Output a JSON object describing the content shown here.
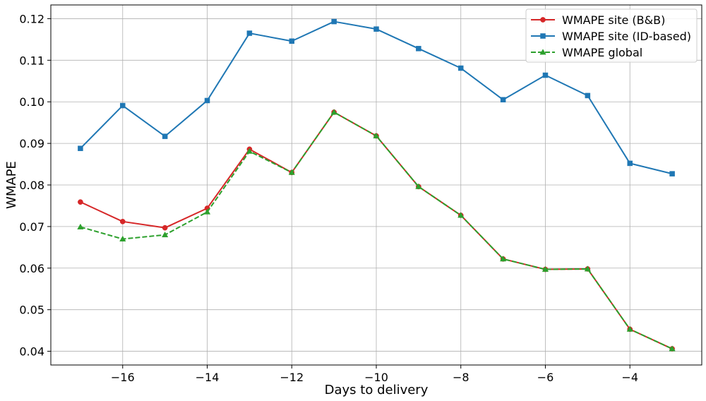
{
  "chart_data": {
    "type": "line",
    "xlabel": "Days to delivery",
    "ylabel": "WMAPE",
    "xlim": [
      -17.7,
      -2.3
    ],
    "ylim": [
      0.0367,
      0.1233
    ],
    "xticks": [
      -16,
      -14,
      -12,
      -10,
      -8,
      -6,
      -4
    ],
    "xtick_labels": [
      "−16",
      "−14",
      "−12",
      "−10",
      "−8",
      "−6",
      "−4"
    ],
    "yticks": [
      0.04,
      0.05,
      0.06,
      0.07,
      0.08,
      0.09,
      0.1,
      0.11,
      0.12
    ],
    "ytick_labels": [
      "0.04",
      "0.05",
      "0.06",
      "0.07",
      "0.08",
      "0.09",
      "0.10",
      "0.11",
      "0.12"
    ],
    "grid": true,
    "legend_position": "top-right",
    "x": [
      -17,
      -16,
      -15,
      -14,
      -13,
      -12,
      -11,
      -10,
      -9,
      -8,
      -7,
      -6,
      -5,
      -4,
      -3
    ],
    "series": [
      {
        "name": "WMAPE site (B&B)",
        "color": "#d62728",
        "marker": "circle",
        "linestyle": "solid",
        "values": [
          0.0759,
          0.0712,
          0.0697,
          0.0744,
          0.0886,
          0.083,
          0.0975,
          0.0918,
          0.0796,
          0.0727,
          0.0622,
          0.0597,
          0.0598,
          0.0453,
          0.0406
        ]
      },
      {
        "name": "WMAPE site (ID-based)",
        "color": "#1f77b4",
        "marker": "square",
        "linestyle": "solid",
        "values": [
          0.0888,
          0.0991,
          0.0917,
          0.1003,
          0.1165,
          0.1146,
          0.1193,
          0.1175,
          0.1128,
          0.1081,
          0.1005,
          0.1064,
          0.1015,
          0.0852,
          0.0827
        ]
      },
      {
        "name": "WMAPE global",
        "color": "#2ca02c",
        "marker": "triangle",
        "linestyle": "dashed",
        "values": [
          0.0699,
          0.067,
          0.068,
          0.0735,
          0.0881,
          0.083,
          0.0975,
          0.0918,
          0.0796,
          0.0727,
          0.0622,
          0.0597,
          0.0598,
          0.0453,
          0.0406
        ]
      }
    ]
  }
}
